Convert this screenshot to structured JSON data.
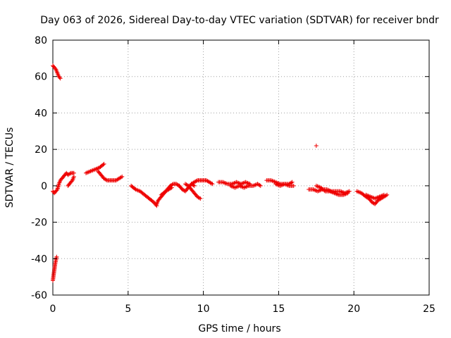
{
  "chart_data": {
    "type": "scatter",
    "title": "Day 063 of 2026, Sidereal Day-to-day VTEC variation (SDTVAR) for receiver bndr",
    "xlabel": "GPS time / hours",
    "ylabel": "SDTVAR / TECUs",
    "xlim": [
      0,
      25
    ],
    "ylim": [
      -60,
      80
    ],
    "x_ticks": [
      0,
      5,
      10,
      15,
      20,
      25
    ],
    "y_ticks": [
      -60,
      -40,
      -20,
      0,
      20,
      40,
      60,
      80
    ],
    "x_tick_labels": [
      "0",
      "5",
      "10",
      "15",
      "20",
      "25"
    ],
    "y_tick_labels": [
      "-60",
      "-40",
      "-20",
      "0",
      "20",
      "40",
      "60",
      "80"
    ],
    "grid": true,
    "marker": "+",
    "color": "#ee0000",
    "series": [
      {
        "name": "SDTVAR bndr",
        "segments": [
          [
            [
              0.0,
              66
            ],
            [
              0.1,
              65
            ],
            [
              0.2,
              64
            ],
            [
              0.3,
              62
            ],
            [
              0.4,
              60
            ],
            [
              0.5,
              59
            ]
          ],
          [
            [
              0.0,
              -52
            ],
            [
              0.05,
              -49
            ],
            [
              0.1,
              -46
            ],
            [
              0.15,
              -43
            ],
            [
              0.2,
              -41
            ],
            [
              0.25,
              -39
            ]
          ],
          [
            [
              0.0,
              -3
            ],
            [
              0.1,
              -4
            ],
            [
              0.2,
              -3
            ],
            [
              0.3,
              -2
            ],
            [
              0.4,
              1
            ],
            [
              0.5,
              3
            ],
            [
              0.6,
              4
            ],
            [
              0.7,
              5
            ],
            [
              0.8,
              6
            ],
            [
              0.9,
              7
            ],
            [
              1.0,
              6
            ],
            [
              1.2,
              7
            ],
            [
              1.4,
              7
            ]
          ],
          [
            [
              1.0,
              0
            ],
            [
              1.1,
              1
            ],
            [
              1.2,
              2
            ],
            [
              1.3,
              3
            ],
            [
              1.4,
              5
            ]
          ],
          [
            [
              2.2,
              7
            ],
            [
              2.5,
              8
            ],
            [
              2.8,
              9
            ],
            [
              3.1,
              10
            ],
            [
              3.4,
              12
            ]
          ],
          [
            [
              3.0,
              8
            ],
            [
              3.1,
              7
            ],
            [
              3.2,
              6
            ],
            [
              3.4,
              4
            ],
            [
              3.6,
              3
            ],
            [
              3.8,
              3
            ],
            [
              4.0,
              3
            ],
            [
              4.2,
              3
            ],
            [
              4.4,
              4
            ],
            [
              4.6,
              5
            ]
          ],
          [
            [
              5.2,
              0
            ],
            [
              5.5,
              -2
            ],
            [
              5.8,
              -3
            ],
            [
              6.1,
              -5
            ],
            [
              6.4,
              -7
            ],
            [
              6.7,
              -9
            ],
            [
              6.9,
              -11
            ]
          ],
          [
            [
              6.9,
              -10
            ],
            [
              7.0,
              -8
            ],
            [
              7.2,
              -6
            ],
            [
              7.4,
              -4
            ],
            [
              7.6,
              -2
            ],
            [
              7.8,
              0
            ],
            [
              8.0,
              1
            ],
            [
              8.2,
              1
            ],
            [
              8.4,
              0
            ],
            [
              8.5,
              -1
            ]
          ],
          [
            [
              7.2,
              -5
            ],
            [
              7.5,
              -3
            ],
            [
              7.7,
              -2
            ],
            [
              7.9,
              -1
            ]
          ],
          [
            [
              8.4,
              0
            ],
            [
              8.6,
              -2
            ],
            [
              8.8,
              -3
            ],
            [
              9.0,
              -1
            ],
            [
              9.2,
              1
            ],
            [
              9.4,
              0
            ]
          ],
          [
            [
              8.8,
              1
            ],
            [
              9.0,
              0
            ],
            [
              9.2,
              -2
            ],
            [
              9.4,
              -4
            ],
            [
              9.6,
              -6
            ],
            [
              9.8,
              -7
            ]
          ],
          [
            [
              9.2,
              1
            ],
            [
              9.4,
              2
            ],
            [
              9.6,
              3
            ],
            [
              9.8,
              3
            ],
            [
              10.0,
              3
            ],
            [
              10.2,
              3
            ],
            [
              10.4,
              2
            ],
            [
              10.6,
              1
            ]
          ],
          [
            [
              11.0,
              2
            ],
            [
              11.3,
              2
            ],
            [
              11.6,
              1
            ],
            [
              11.9,
              1
            ],
            [
              12.2,
              2
            ],
            [
              12.5,
              1
            ],
            [
              12.8,
              2
            ],
            [
              13.1,
              1
            ]
          ],
          [
            [
              11.8,
              0
            ],
            [
              12.1,
              -1
            ],
            [
              12.4,
              0
            ],
            [
              12.7,
              -1
            ],
            [
              13.0,
              0
            ],
            [
              13.3,
              0
            ],
            [
              13.6,
              1
            ],
            [
              13.8,
              0
            ]
          ],
          [
            [
              14.2,
              3
            ],
            [
              14.5,
              3
            ],
            [
              14.8,
              2
            ],
            [
              15.1,
              1
            ],
            [
              15.4,
              1
            ],
            [
              15.7,
              1
            ],
            [
              15.9,
              2
            ]
          ],
          [
            [
              14.8,
              1
            ],
            [
              15.1,
              0
            ],
            [
              15.4,
              1
            ],
            [
              15.7,
              0
            ],
            [
              16.0,
              0
            ]
          ],
          [
            [
              17.5,
              22
            ]
          ],
          [
            [
              17.0,
              -2
            ],
            [
              17.3,
              -2
            ],
            [
              17.6,
              -3
            ],
            [
              17.9,
              -2
            ],
            [
              18.2,
              -2
            ],
            [
              18.5,
              -3
            ],
            [
              18.8,
              -3
            ],
            [
              19.1,
              -3
            ],
            [
              19.4,
              -4
            ],
            [
              19.7,
              -3
            ]
          ],
          [
            [
              17.5,
              0
            ],
            [
              17.8,
              -1
            ],
            [
              18.1,
              -3
            ],
            [
              18.4,
              -3
            ],
            [
              18.7,
              -4
            ],
            [
              19.0,
              -5
            ],
            [
              19.3,
              -5
            ],
            [
              19.6,
              -4
            ]
          ],
          [
            [
              20.2,
              -3
            ],
            [
              20.5,
              -4
            ],
            [
              20.8,
              -6
            ],
            [
              21.0,
              -7
            ],
            [
              21.2,
              -9
            ],
            [
              21.4,
              -10
            ],
            [
              21.6,
              -8
            ],
            [
              21.8,
              -7
            ],
            [
              22.0,
              -6
            ],
            [
              22.2,
              -5
            ]
          ],
          [
            [
              20.8,
              -5
            ],
            [
              21.1,
              -6
            ],
            [
              21.4,
              -7
            ],
            [
              21.7,
              -6
            ],
            [
              22.0,
              -5
            ]
          ]
        ]
      }
    ]
  }
}
